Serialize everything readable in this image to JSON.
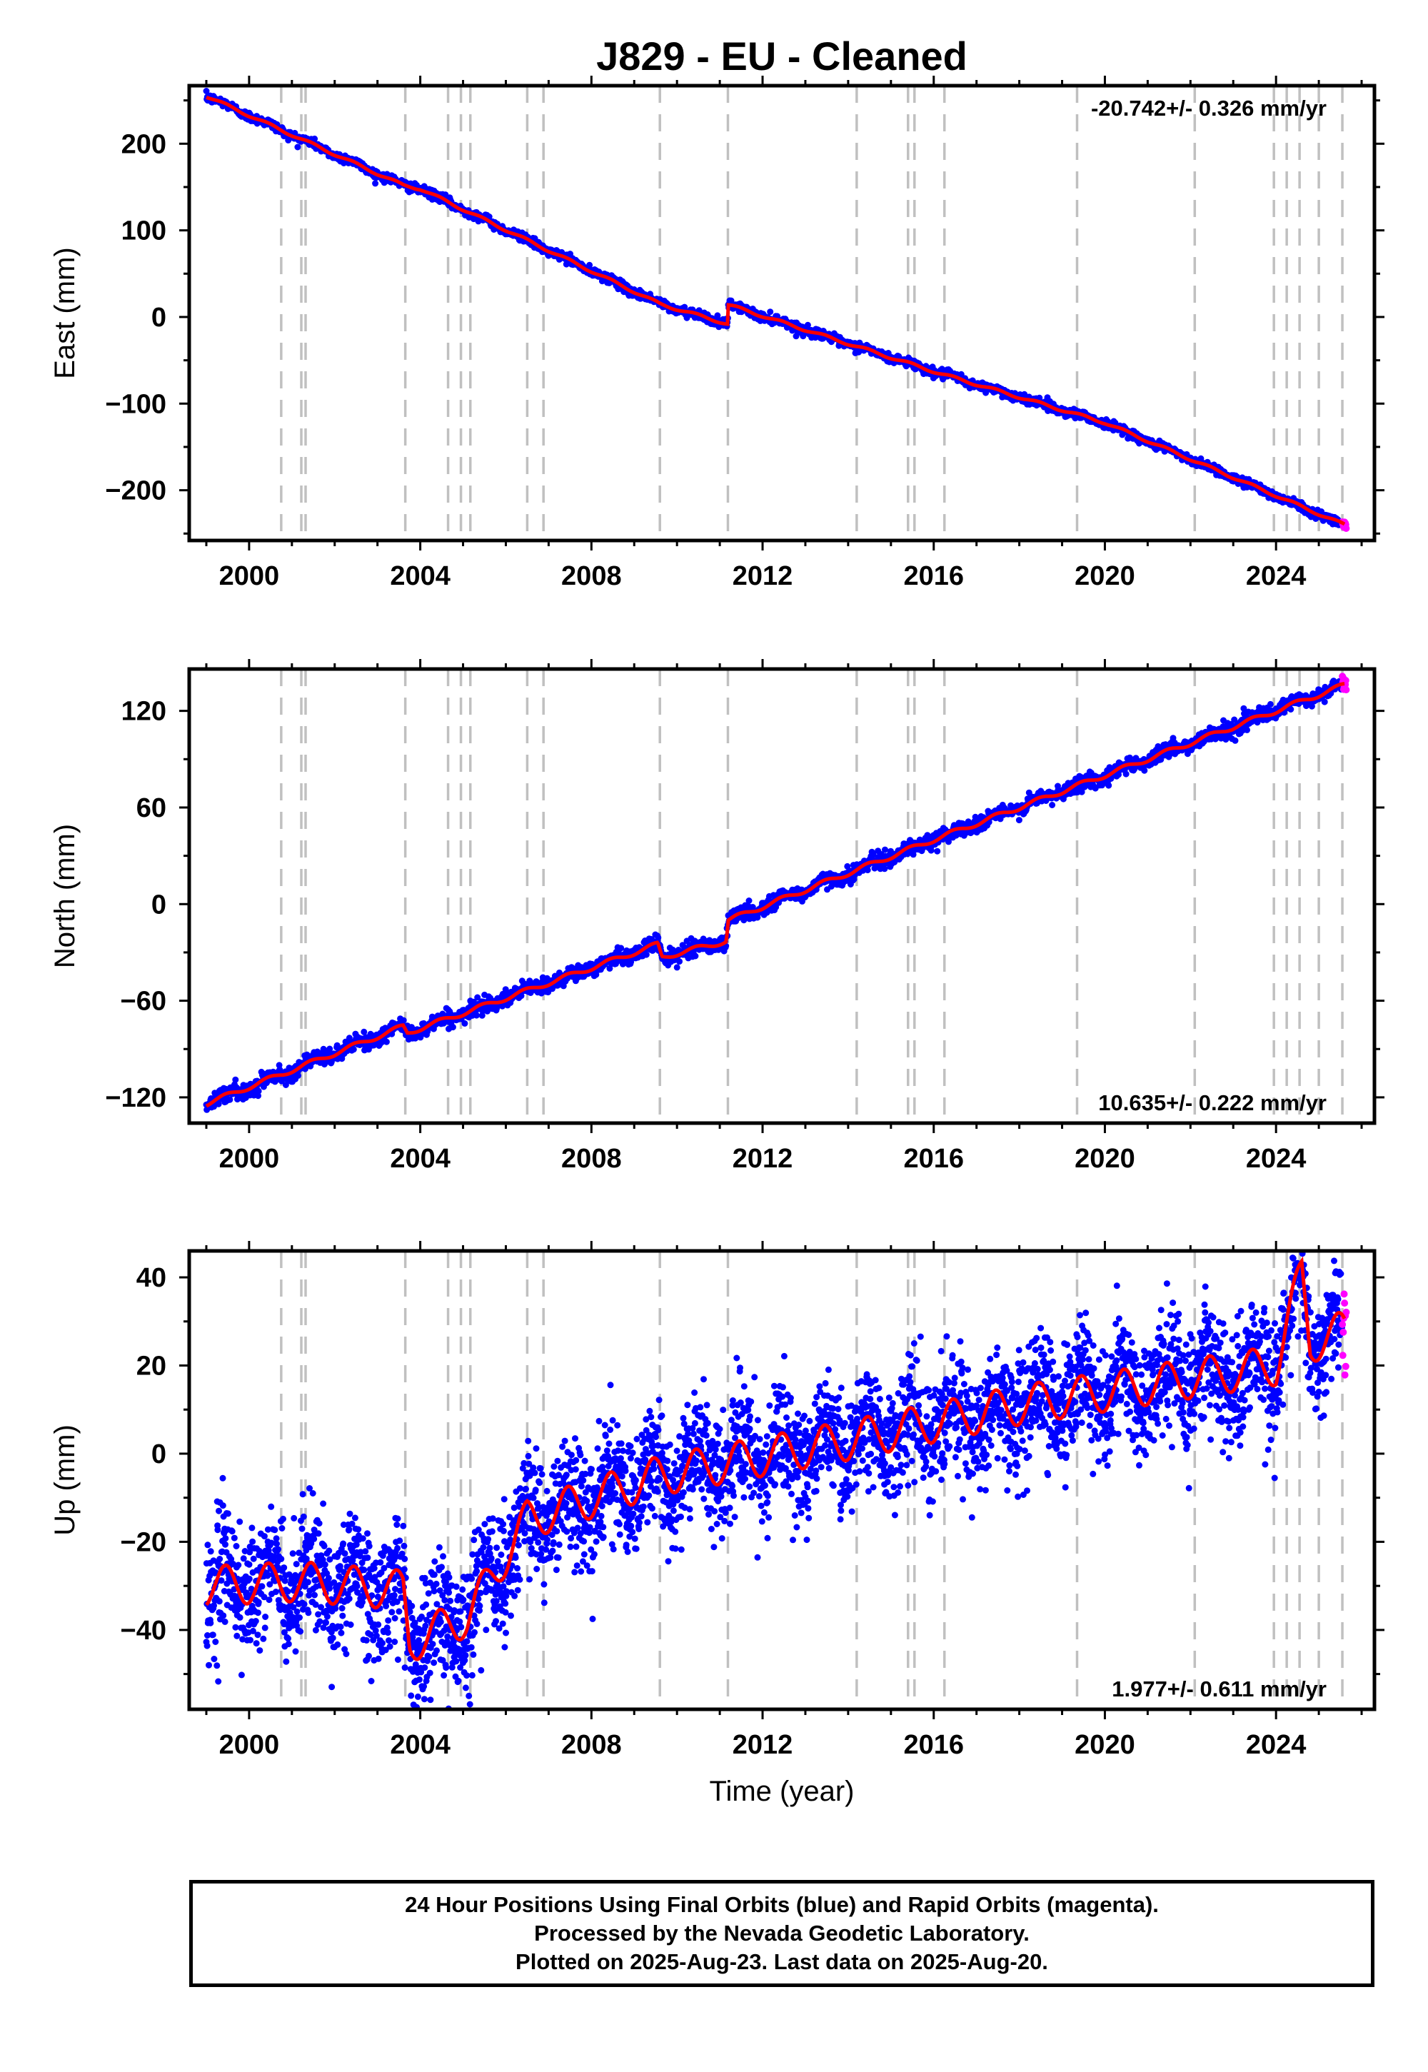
{
  "chart_data": [
    {
      "type": "scatter",
      "panel": "east",
      "title": "J829  - EU - Cleaned",
      "ylabel": "East (mm)",
      "xlabel": "",
      "xlim": [
        1998.6,
        2026.3
      ],
      "ylim": [
        -258,
        267
      ],
      "x_ticks": [
        2000,
        2004,
        2008,
        2012,
        2016,
        2020,
        2024
      ],
      "y_ticks": [
        -200,
        -100,
        0,
        100,
        200
      ],
      "y_tick_labels": [
        "−200",
        "−100",
        "0",
        "100",
        "200"
      ],
      "rate_text": "-20.742+/- 0.326 mm/yr",
      "rate_position": "top-right",
      "step_events": [
        {
          "year": 2011.19,
          "offset_mm": 20
        }
      ],
      "model_curve": {
        "color": "#ff0000",
        "x": [
          1999.0,
          2003.6,
          2004.0,
          2009.6,
          2011.18,
          2011.2,
          2016.2,
          2020.0,
          2025.6
        ],
        "y": [
          255,
          152,
          148,
          15,
          -8,
          14,
          -66,
          -122,
          -240
        ]
      },
      "series": [
        {
          "name": "Final Orbits",
          "color": "#0000ff",
          "x_range": [
            1999.0,
            2025.55
          ]
        },
        {
          "name": "Rapid Orbits",
          "color": "#ff00ff",
          "x_range": [
            2025.55,
            2025.64
          ]
        }
      ]
    },
    {
      "type": "scatter",
      "panel": "north",
      "title": "",
      "ylabel": "North (mm)",
      "xlabel": "",
      "xlim": [
        1998.6,
        2026.3
      ],
      "ylim": [
        -136,
        146
      ],
      "x_ticks": [
        2000,
        2004,
        2008,
        2012,
        2016,
        2020,
        2024
      ],
      "y_ticks": [
        -120,
        -60,
        0,
        60,
        120
      ],
      "y_tick_labels": [
        "−120",
        "−60",
        "0",
        "60",
        "120"
      ],
      "rate_text": "10.635+/- 0.222 mm/yr",
      "rate_position": "bottom-right",
      "step_events": [
        {
          "year": 2009.6,
          "offset_mm": -10
        },
        {
          "year": 2011.19,
          "offset_mm": 12
        }
      ],
      "model_curve": {
        "color": "#ff0000",
        "x": [
          1999.0,
          2003.6,
          2003.7,
          2009.55,
          2009.65,
          2011.15,
          2011.2,
          2016.0,
          2020.0,
          2025.6
        ],
        "y": [
          -124,
          -76,
          -80,
          -25,
          -33,
          -23,
          -10,
          40,
          80,
          136
        ]
      },
      "series": [
        {
          "name": "Final Orbits",
          "color": "#0000ff",
          "x_range": [
            1999.0,
            2025.55
          ]
        },
        {
          "name": "Rapid Orbits",
          "color": "#ff00ff",
          "x_range": [
            2025.55,
            2025.64
          ]
        }
      ]
    },
    {
      "type": "scatter",
      "panel": "up",
      "title": "",
      "ylabel": "Up (mm)",
      "xlabel": "Time (year)",
      "xlim": [
        1998.6,
        2026.3
      ],
      "ylim": [
        -58,
        46
      ],
      "x_ticks": [
        2000,
        2004,
        2008,
        2012,
        2016,
        2020,
        2024
      ],
      "y_ticks": [
        -40,
        -20,
        0,
        20,
        40
      ],
      "y_tick_labels": [
        "−40",
        "−20",
        "0",
        "20",
        "40"
      ],
      "rate_text": "1.977+/- 0.611 mm/yr",
      "rate_position": "bottom-right",
      "model_curve": {
        "color": "#ff0000",
        "x": [
          1999.0,
          2001.2,
          2003.6,
          2003.75,
          2005.1,
          2006.5,
          2009.6,
          2014.0,
          2018.0,
          2022.0,
          2024.0,
          2024.6,
          2024.8,
          2025.6
        ],
        "y": [
          -30,
          -29,
          -31,
          -43,
          -37,
          -15,
          -5,
          3,
          11,
          17,
          20,
          41,
          25,
          28
        ]
      },
      "series": [
        {
          "name": "Final Orbits",
          "color": "#0000ff",
          "x_range": [
            1999.0,
            2025.55
          ]
        },
        {
          "name": "Rapid Orbits",
          "color": "#ff00ff",
          "x_range": [
            2025.55,
            2025.64
          ]
        }
      ]
    }
  ],
  "equipment_change_lines": [
    2000.75,
    2001.22,
    2001.32,
    2003.65,
    2004.65,
    2004.95,
    2005.17,
    2006.5,
    2006.88,
    2009.6,
    2011.19,
    2014.2,
    2015.4,
    2015.55,
    2016.25,
    2019.35,
    2022.1,
    2023.95,
    2024.25,
    2024.55,
    2025.0,
    2025.55
  ],
  "footer": {
    "line1": "24 Hour Positions Using Final Orbits (blue) and Rapid Orbits (magenta).",
    "line2": "Processed by the Nevada Geodetic Laboratory.",
    "line3": "Plotted on 2025-Aug-23. Last data on 2025-Aug-20."
  }
}
